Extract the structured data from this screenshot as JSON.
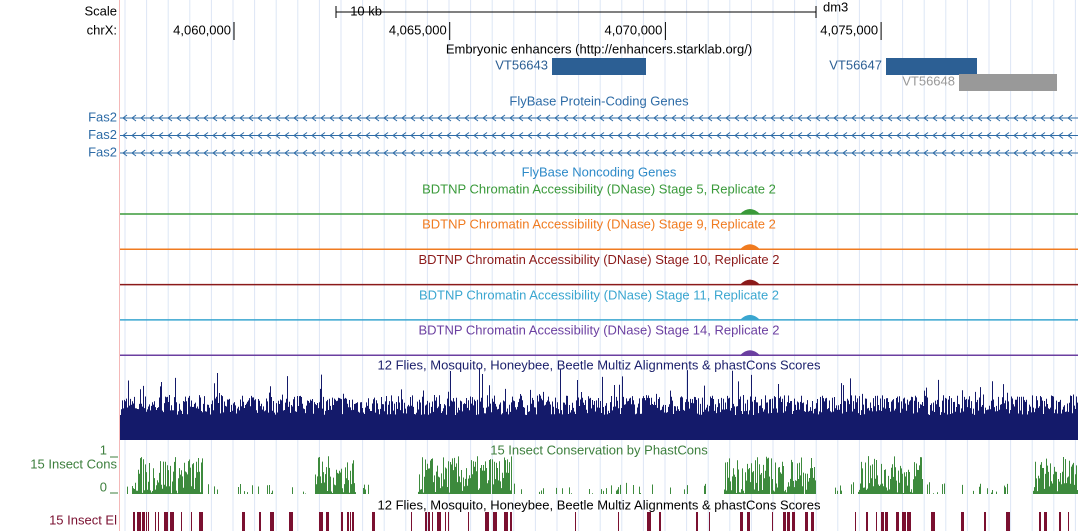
{
  "ruler": {
    "scale_label": "Scale",
    "chrom_label": "chrX:",
    "scale_bar": "10 kb",
    "assembly": "dm3",
    "ticks": [
      {
        "value": 4060000,
        "label": "4,060,000"
      },
      {
        "value": 4065000,
        "label": "4,065,000"
      },
      {
        "value": 4070000,
        "label": "4,070,000"
      },
      {
        "value": 4075000,
        "label": "4,075,000"
      }
    ]
  },
  "enhancers": {
    "title": "Embryonic enhancers (http://enhancers.starklab.org/)",
    "items": [
      "VT56643",
      "VT56647",
      "VT56648"
    ]
  },
  "genes": {
    "title": "FlyBase Protein-Coding Genes",
    "items": [
      "Fas2",
      "Fas2",
      "Fas2"
    ]
  },
  "noncoding": {
    "title": "FlyBase Noncoding Genes"
  },
  "dnase": [
    {
      "title": "BDTNP Chromatin Accessibility (DNase) Stage 5, Replicate 2",
      "color": "#3a9a3a"
    },
    {
      "title": "BDTNP Chromatin Accessibility (DNase) Stage 9, Replicate 2",
      "color": "#f07b20"
    },
    {
      "title": "BDTNP Chromatin Accessibility (DNase) Stage 10, Replicate 2",
      "color": "#8b1a1a"
    },
    {
      "title": "BDTNP Chromatin Accessibility (DNase) Stage 11, Replicate 2",
      "color": "#3aa6d0"
    },
    {
      "title": "BDTNP Chromatin Accessibility (DNase) Stage 14, Replicate 2",
      "color": "#6b3fa0"
    }
  ],
  "multiz": {
    "title": "12 Flies, Mosquito, Honeybee, Beetle Multiz Alignments & phastCons Scores"
  },
  "phastcons": {
    "title": "15 Insect Conservation by PhastCons",
    "side_label": "15 Insect Cons",
    "max": 1,
    "min": 0
  },
  "elements": {
    "title": "12 Flies, Mosquito, Honeybee, Beetle Multiz Alignments & phastCons Scores",
    "side_label": "15 Insect El"
  }
}
